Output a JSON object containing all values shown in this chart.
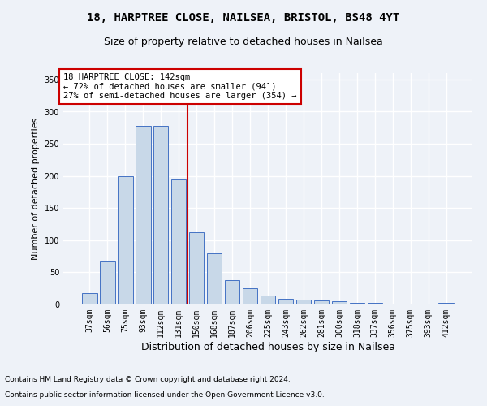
{
  "title1": "18, HARPTREE CLOSE, NAILSEA, BRISTOL, BS48 4YT",
  "title2": "Size of property relative to detached houses in Nailsea",
  "xlabel": "Distribution of detached houses by size in Nailsea",
  "ylabel": "Number of detached properties",
  "footnote1": "Contains HM Land Registry data © Crown copyright and database right 2024.",
  "footnote2": "Contains public sector information licensed under the Open Government Licence v3.0.",
  "categories": [
    "37sqm",
    "56sqm",
    "75sqm",
    "93sqm",
    "112sqm",
    "131sqm",
    "150sqm",
    "168sqm",
    "187sqm",
    "206sqm",
    "225sqm",
    "243sqm",
    "262sqm",
    "281sqm",
    "300sqm",
    "318sqm",
    "337sqm",
    "356sqm",
    "375sqm",
    "393sqm",
    "412sqm"
  ],
  "values": [
    18,
    67,
    200,
    278,
    278,
    195,
    113,
    79,
    38,
    25,
    14,
    9,
    7,
    6,
    5,
    3,
    2,
    1,
    1,
    0,
    3
  ],
  "bar_color": "#c8d8e8",
  "bar_edge_color": "#4472c4",
  "vline_x": 5.5,
  "vline_color": "#cc0000",
  "annotation_title": "18 HARPTREE CLOSE: 142sqm",
  "annotation_line1": "← 72% of detached houses are smaller (941)",
  "annotation_line2": "27% of semi-detached houses are larger (354) →",
  "annotation_box_color": "#cc0000",
  "ylim": [
    0,
    360
  ],
  "yticks": [
    0,
    50,
    100,
    150,
    200,
    250,
    300,
    350
  ],
  "background_color": "#eef2f8",
  "grid_color": "#ffffff",
  "title1_fontsize": 10,
  "title2_fontsize": 9,
  "xlabel_fontsize": 9,
  "ylabel_fontsize": 8,
  "tick_fontsize": 7,
  "annotation_fontsize": 7.5,
  "footnote_fontsize": 6.5
}
